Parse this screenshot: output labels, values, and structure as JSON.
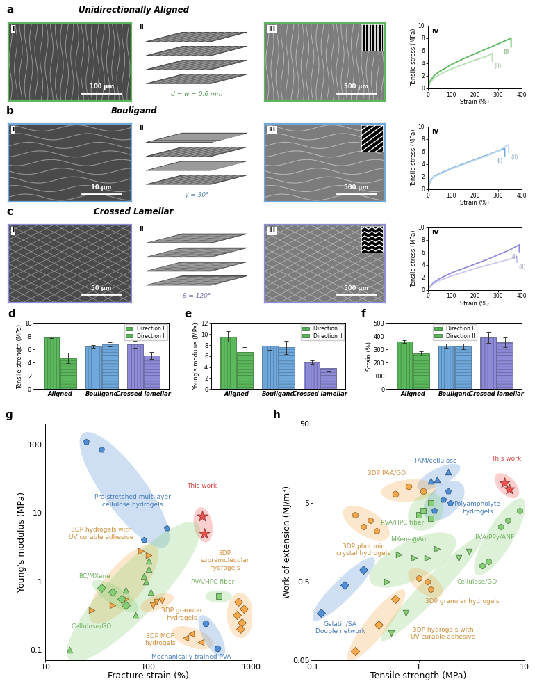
{
  "rows": [
    {
      "letter": "a",
      "title": "Unidirectionally Aligned",
      "I": {
        "numeral": "I",
        "scale_bar": "100 μm"
      },
      "II": {
        "numeral": "II",
        "label": "d = w = 0.6 mm"
      },
      "III": {
        "numeral": "III",
        "scale_bar": "500 μm"
      }
    },
    {
      "letter": "b",
      "title": "Bouligand",
      "I": {
        "numeral": "I",
        "scale_bar": "10 μm"
      },
      "II": {
        "numeral": "II",
        "label": "γ = 30°"
      },
      "III": {
        "numeral": "III",
        "scale_bar": "500 μm"
      }
    },
    {
      "letter": "c",
      "title": "Crossed Lamellar",
      "I": {
        "numeral": "I",
        "scale_bar": "50 μm"
      },
      "II": {
        "numeral": "II",
        "label": "θ = 120°"
      },
      "III": {
        "numeral": "III",
        "scale_bar": "500 μm"
      }
    }
  ],
  "chart_data": [
    {
      "type": "line",
      "annotations": [
        "IV"
      ],
      "x_label": "Strain (%)",
      "y_label": "Tensile stress (MPa)",
      "xlim": [
        0,
        400
      ],
      "ylim": [
        0,
        10
      ],
      "xticks": [
        0,
        100,
        200,
        300,
        400
      ],
      "yticks": [
        0,
        2,
        4,
        6,
        8,
        10
      ],
      "grid": false,
      "series": [
        {
          "name": "(I)",
          "color": "#5cb85c",
          "x": [
            0,
            10,
            25,
            50,
            100,
            150,
            200,
            250,
            300,
            355,
            355
          ],
          "values": [
            0,
            1.2,
            2.0,
            2.7,
            3.8,
            4.7,
            5.5,
            6.3,
            7.1,
            8.0,
            6.6
          ]
        },
        {
          "name": "(II)",
          "color": "#b5e0b0",
          "x": [
            0,
            10,
            25,
            50,
            100,
            150,
            200,
            250,
            275,
            275
          ],
          "values": [
            0,
            0.9,
            1.6,
            2.2,
            3.1,
            3.8,
            4.5,
            5.1,
            5.6,
            4.3
          ]
        }
      ]
    },
    {
      "type": "line",
      "annotations": [
        "IV"
      ],
      "x_label": "Strain (%)",
      "y_label": "Tensile stress (MPa)",
      "xlim": [
        0,
        400
      ],
      "ylim": [
        0,
        10
      ],
      "xticks": [
        0,
        100,
        200,
        300,
        400
      ],
      "yticks": [
        0,
        2,
        4,
        6,
        8,
        10
      ],
      "grid": false,
      "series": [
        {
          "name": "(I)",
          "color": "#6fa8dc",
          "x": [
            0,
            10,
            25,
            50,
            100,
            150,
            200,
            250,
            300,
            328,
            328
          ],
          "values": [
            0,
            1.3,
            2.0,
            2.5,
            3.3,
            4.0,
            4.7,
            5.4,
            6.1,
            6.5,
            5.3
          ]
        },
        {
          "name": "(II)",
          "color": "#bcd8ef",
          "x": [
            0,
            10,
            25,
            50,
            100,
            150,
            200,
            250,
            300,
            345,
            345
          ],
          "values": [
            0,
            1.2,
            1.9,
            2.4,
            3.2,
            3.9,
            4.6,
            5.3,
            6.1,
            7.1,
            5.8
          ]
        }
      ]
    },
    {
      "type": "line",
      "annotations": [
        "IV"
      ],
      "x_label": "Strain (%)",
      "y_label": "Tensile stress (MPa)",
      "xlim": [
        0,
        400
      ],
      "ylim": [
        0,
        10
      ],
      "xticks": [
        0,
        100,
        200,
        300,
        400
      ],
      "yticks": [
        0,
        2,
        4,
        6,
        8,
        10
      ],
      "grid": false,
      "series": [
        {
          "name": "(I)",
          "color": "#8e8cd8",
          "x": [
            0,
            10,
            25,
            50,
            100,
            150,
            200,
            250,
            300,
            350,
            390,
            390
          ],
          "values": [
            0,
            0.6,
            1.2,
            1.8,
            2.7,
            3.4,
            4.1,
            4.8,
            5.6,
            6.4,
            7.2,
            6.1
          ]
        },
        {
          "name": "(II)",
          "color": "#c9c8ef",
          "x": [
            0,
            10,
            25,
            50,
            100,
            150,
            200,
            250,
            300,
            350,
            380,
            380
          ],
          "values": [
            0,
            0.5,
            1.0,
            1.5,
            2.2,
            2.8,
            3.4,
            3.9,
            4.4,
            4.9,
            5.3,
            4.4
          ]
        }
      ]
    },
    {
      "type": "bar",
      "annotations": [
        "d"
      ],
      "y_label": "Tensile strength (MPa)",
      "categories": [
        "Aligned",
        "Bouligand",
        "Crossed lamellar"
      ],
      "ylim": [
        0,
        10
      ],
      "yticks": [
        0,
        2,
        4,
        6,
        8,
        10
      ],
      "legend": "upper right",
      "grid": false,
      "series": [
        {
          "name": "Direction I",
          "colors": [
            "#5cb85c",
            "#6fa8dc",
            "#8e8cd8"
          ],
          "values": [
            7.8,
            6.5,
            6.8
          ],
          "errors": [
            0.1,
            0.2,
            0.5
          ]
        },
        {
          "name": "Direction II",
          "colors": [
            "#5cb85c",
            "#6fa8dc",
            "#8e8cd8"
          ],
          "values": [
            4.7,
            6.8,
            5.1
          ],
          "errors": [
            0.8,
            0.3,
            0.5
          ]
        }
      ]
    },
    {
      "type": "bar",
      "annotations": [
        "e"
      ],
      "y_label": "Young's modulus (MPa)",
      "categories": [
        "Aligned",
        "Bouligand",
        "Crossed lamellar"
      ],
      "ylim": [
        0,
        12
      ],
      "yticks": [
        0,
        2,
        4,
        6,
        8,
        10,
        12
      ],
      "legend": "upper right",
      "grid": false,
      "series": [
        {
          "name": "Direction I",
          "colors": [
            "#5cb85c",
            "#6fa8dc",
            "#8e8cd8"
          ],
          "values": [
            9.6,
            7.9,
            4.9
          ],
          "errors": [
            0.9,
            0.8,
            0.3
          ]
        },
        {
          "name": "Direction II",
          "colors": [
            "#5cb85c",
            "#6fa8dc",
            "#8e8cd8"
          ],
          "values": [
            6.7,
            7.6,
            3.9
          ],
          "errors": [
            1.0,
            1.2,
            0.6
          ]
        }
      ]
    },
    {
      "type": "bar",
      "annotations": [
        "f"
      ],
      "y_label": "Strain (%)",
      "categories": [
        "Aligned",
        "Bouligand",
        "Crossed lamellar"
      ],
      "ylim": [
        0,
        500
      ],
      "yticks": [
        0,
        100,
        200,
        300,
        400,
        500
      ],
      "legend": "upper center",
      "grid": false,
      "series": [
        {
          "name": "Direction I",
          "colors": [
            "#5cb85c",
            "#6fa8dc",
            "#8e8cd8"
          ],
          "values": [
            360,
            330,
            392
          ],
          "errors": [
            10,
            15,
            40
          ]
        },
        {
          "name": "Direction II",
          "colors": [
            "#5cb85c",
            "#6fa8dc",
            "#8e8cd8"
          ],
          "values": [
            270,
            325,
            355
          ],
          "errors": [
            15,
            20,
            35
          ]
        }
      ]
    },
    {
      "type": "scatter",
      "annotations": [
        "g"
      ],
      "x_label": "Fracture strain (%)",
      "y_label": "Young's modulus (MPa)",
      "log": true,
      "xlim": [
        10,
        1000
      ],
      "ylim": [
        0.07,
        200
      ],
      "xticks": [
        10,
        100,
        1000
      ],
      "yticks": [
        0.1,
        1,
        10,
        100
      ],
      "grid": false,
      "series": [
        {
          "name": "Pre-stretched multilayer\ncellulose hydrogels",
          "color": "#4f8fd6",
          "marker": "pentagon",
          "x": [
            25,
            35,
            90,
            150
          ],
          "values": [
            110,
            85,
            4.0,
            6.0
          ]
        },
        {
          "name": "This work",
          "color": "#ef5350",
          "marker": "star",
          "x": [
            330,
            350
          ],
          "values": [
            9.0,
            5.0
          ]
        },
        {
          "name": "3DP hydrogels with\nUV curable adhesive",
          "color": "#f5a94a",
          "marker": "triangle_right",
          "x": [
            85,
            100,
            60,
            28,
            45
          ],
          "values": [
            2.8,
            2.4,
            0.55,
            0.38,
            0.45
          ]
        },
        {
          "name": "BC/MXene",
          "color": "#86cf74",
          "marker": "diamond",
          "x": [
            35,
            45,
            55,
            60
          ],
          "values": [
            0.8,
            0.7,
            0.55,
            0.45
          ]
        },
        {
          "name": "Cellulose/GO",
          "color": "#86cf74",
          "marker": "triangle_up",
          "x": [
            17,
            60,
            75,
            95,
            100,
            100,
            105,
            90
          ],
          "values": [
            0.1,
            0.75,
            0.32,
            1.0,
            1.5,
            2.0,
            0.7,
            1.2
          ]
        },
        {
          "name": "PVA/HPC fiber",
          "color": "#86cf74",
          "marker": "square",
          "x": [
            480
          ],
          "values": [
            0.6
          ]
        },
        {
          "name": "3DP\nsupramolecular\nhydrogels",
          "color": "#f5a94a",
          "marker": "diamond",
          "x": [
            750,
            800,
            780,
            720,
            850
          ],
          "values": [
            0.5,
            0.25,
            0.2,
            0.32,
            0.4
          ]
        },
        {
          "name": "3DP granular\nhydrogels",
          "color": "#f5a94a",
          "marker": "triangle_down",
          "x": [
            120,
            135,
            110
          ],
          "values": [
            0.5,
            0.52,
            0.45
          ]
        },
        {
          "name": "3DP MOF\nhydrogels",
          "color": "#f5a94a",
          "marker": "triangle_left",
          "x": [
            230,
            260,
            320
          ],
          "values": [
            0.15,
            0.17,
            0.13
          ]
        },
        {
          "name": "Mechanically trained PVA",
          "color": "#4f8fd6",
          "marker": "circle",
          "x": [
            360,
            470
          ],
          "values": [
            0.24,
            0.105
          ]
        }
      ]
    },
    {
      "type": "scatter",
      "annotations": [
        "h"
      ],
      "x_label": "Tensile strength (MPa)",
      "y_label": "Work of extension (MJ/m³)",
      "log": true,
      "xlim": [
        0.1,
        10
      ],
      "ylim": [
        0.05,
        50
      ],
      "xticks": [
        0.1,
        1,
        10
      ],
      "yticks": [
        0.05,
        0.5,
        5,
        50
      ],
      "grid": false,
      "series": [
        {
          "name": "PAM/cellulose",
          "color": "#4f8fd6",
          "marker": "triangle_up",
          "x": [
            1.3,
            1.5,
            1.9
          ],
          "values": [
            9.5,
            10,
            12.5
          ]
        },
        {
          "name": "This work",
          "color": "#ef5350",
          "marker": "star",
          "x": [
            6.5,
            7.2
          ],
          "values": [
            9,
            7.5
          ]
        },
        {
          "name": "3DP PAA/GO",
          "color": "#f5a94a",
          "marker": "circle",
          "x": [
            0.6,
            0.8,
            1.1
          ],
          "values": [
            6.5,
            8,
            7
          ]
        },
        {
          "name": "Polyampholyte\nhydrogels",
          "color": "#4f8fd6",
          "marker": "pentagon",
          "x": [
            1.4,
            1.7,
            1.9,
            2.0
          ],
          "values": [
            4,
            5.5,
            7,
            5
          ]
        },
        {
          "name": "3DP photonic\ncrystal hydrogels",
          "color": "#f5a94a",
          "marker": "hexagon",
          "x": [
            0.25,
            0.3,
            0.35,
            0.4
          ],
          "values": [
            3.5,
            2.5,
            3,
            2.2
          ]
        },
        {
          "name": "PVA/HPC fiber",
          "color": "#86cf74",
          "marker": "square",
          "x": [
            1.0,
            1.1,
            1.3,
            1.3
          ],
          "values": [
            3.5,
            4,
            5,
            3.2
          ]
        },
        {
          "name": "MXene@Au",
          "color": "#86cf74",
          "marker": "triangle_right",
          "x": [
            0.5,
            0.65,
            0.9,
            1.2,
            1.5
          ],
          "values": [
            0.5,
            1.1,
            1.0,
            1.0,
            1.3
          ]
        },
        {
          "name": "PVA/PPy/ANF",
          "color": "#86cf74",
          "marker": "triangle_down",
          "x": [
            0.55,
            0.75,
            2.4,
            3.0
          ],
          "values": [
            0.11,
            0.2,
            1.0,
            1.2
          ]
        },
        {
          "name": "Cellulose/GO",
          "color": "#86cf74",
          "marker": "hexagon",
          "x": [
            4.0,
            4.6,
            6.0,
            7.0,
            9.0
          ],
          "values": [
            0.8,
            0.9,
            2.5,
            3.0,
            4.0
          ]
        },
        {
          "name": "3DP granular hydrogels",
          "color": "#f5a94a",
          "marker": "hexagon",
          "x": [
            1.0,
            1.2,
            1.3
          ],
          "values": [
            0.55,
            0.5,
            0.4
          ]
        },
        {
          "name": "3DP hydrogels with\nUV curable adhesive",
          "color": "#f5a94a",
          "marker": "diamond",
          "x": [
            0.25,
            0.42,
            0.6
          ],
          "values": [
            0.065,
            0.14,
            0.3
          ]
        },
        {
          "name": "Gelatin/SA\nDouble network",
          "color": "#4f8fd6",
          "marker": "diamond",
          "x": [
            0.12,
            0.2,
            0.3
          ],
          "values": [
            0.2,
            0.45,
            0.7
          ]
        }
      ]
    }
  ]
}
